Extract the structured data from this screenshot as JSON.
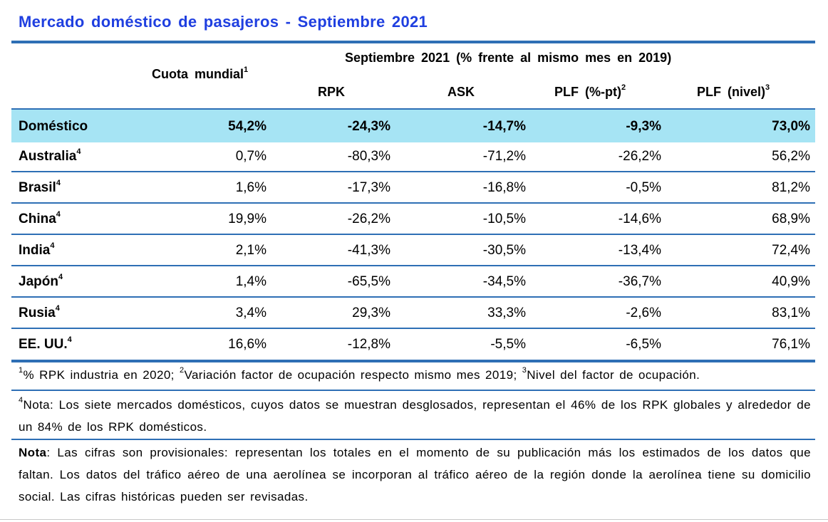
{
  "title": "Mercado doméstico de pasajeros - Septiembre 2021",
  "header": {
    "cuota_label": "Cuota mundial",
    "cuota_sup": "1",
    "period_label": "Septiembre 2021 (% frente al mismo mes en 2019)",
    "columns": [
      {
        "label": "RPK",
        "sup": ""
      },
      {
        "label": "ASK",
        "sup": ""
      },
      {
        "label": "PLF (%-pt)",
        "sup": "2"
      },
      {
        "label": "PLF (nivel)",
        "sup": "3"
      }
    ]
  },
  "rows": [
    {
      "name": "Doméstico",
      "sup": "",
      "cuota": "54,2%",
      "rpk": "-24,3%",
      "ask": "-14,7%",
      "plf_pt": "-9,3%",
      "plf_nivel": "73,0%"
    },
    {
      "name": "Australia",
      "sup": "4",
      "cuota": "0,7%",
      "rpk": "-80,3%",
      "ask": "-71,2%",
      "plf_pt": "-26,2%",
      "plf_nivel": "56,2%"
    },
    {
      "name": "Brasil",
      "sup": "4",
      "cuota": "1,6%",
      "rpk": "-17,3%",
      "ask": "-16,8%",
      "plf_pt": "-0,5%",
      "plf_nivel": "81,2%"
    },
    {
      "name": "China",
      "sup": "4",
      "cuota": "19,9%",
      "rpk": "-26,2%",
      "ask": "-10,5%",
      "plf_pt": "-14,6%",
      "plf_nivel": "68,9%"
    },
    {
      "name": "India",
      "sup": "4",
      "cuota": "2,1%",
      "rpk": "-41,3%",
      "ask": "-30,5%",
      "plf_pt": "-13,4%",
      "plf_nivel": "72,4%"
    },
    {
      "name": "Japón",
      "sup": "4",
      "cuota": "1,4%",
      "rpk": "-65,5%",
      "ask": "-34,5%",
      "plf_pt": "-36,7%",
      "plf_nivel": "40,9%"
    },
    {
      "name": "Rusia",
      "sup": "4",
      "cuota": "3,4%",
      "rpk": "29,3%",
      "ask": "33,3%",
      "plf_pt": "-2,6%",
      "plf_nivel": "83,1%"
    },
    {
      "name": "EE. UU.",
      "sup": "4",
      "cuota": "16,6%",
      "rpk": "-12,8%",
      "ask": "-5,5%",
      "plf_pt": "-6,5%",
      "plf_nivel": "76,1%"
    }
  ],
  "footnotes": {
    "fn1_sup": "1",
    "fn1_text": "% RPK industria en 2020; ",
    "fn2_sup": "2",
    "fn2_text": "Variación factor de ocupación respecto mismo mes 2019; ",
    "fn3_sup": "3",
    "fn3_text": "Nivel del factor de ocupación.",
    "fn4_sup": "4",
    "fn4_text": "Nota: Los siete mercados domésticos, cuyos datos se muestran desglosados, representan el 46% de los RPK globales y alrededor de un 84% de los RPK domésticos.",
    "note_label": "Nota",
    "note_text": ": Las cifras son provisionales: representan los totales en el momento de su publicación más los estimados de los datos que faltan. Los datos del tráfico aéreo de una aerolínea se incorporan al tráfico aéreo de la región donde la aerolínea tiene su domicilio social. Las cifras históricas pueden ser revisadas."
  },
  "colors": {
    "title": "#1f3fe0",
    "rules": "#2e6fb5",
    "highlight_row": "#a6e4f4"
  }
}
